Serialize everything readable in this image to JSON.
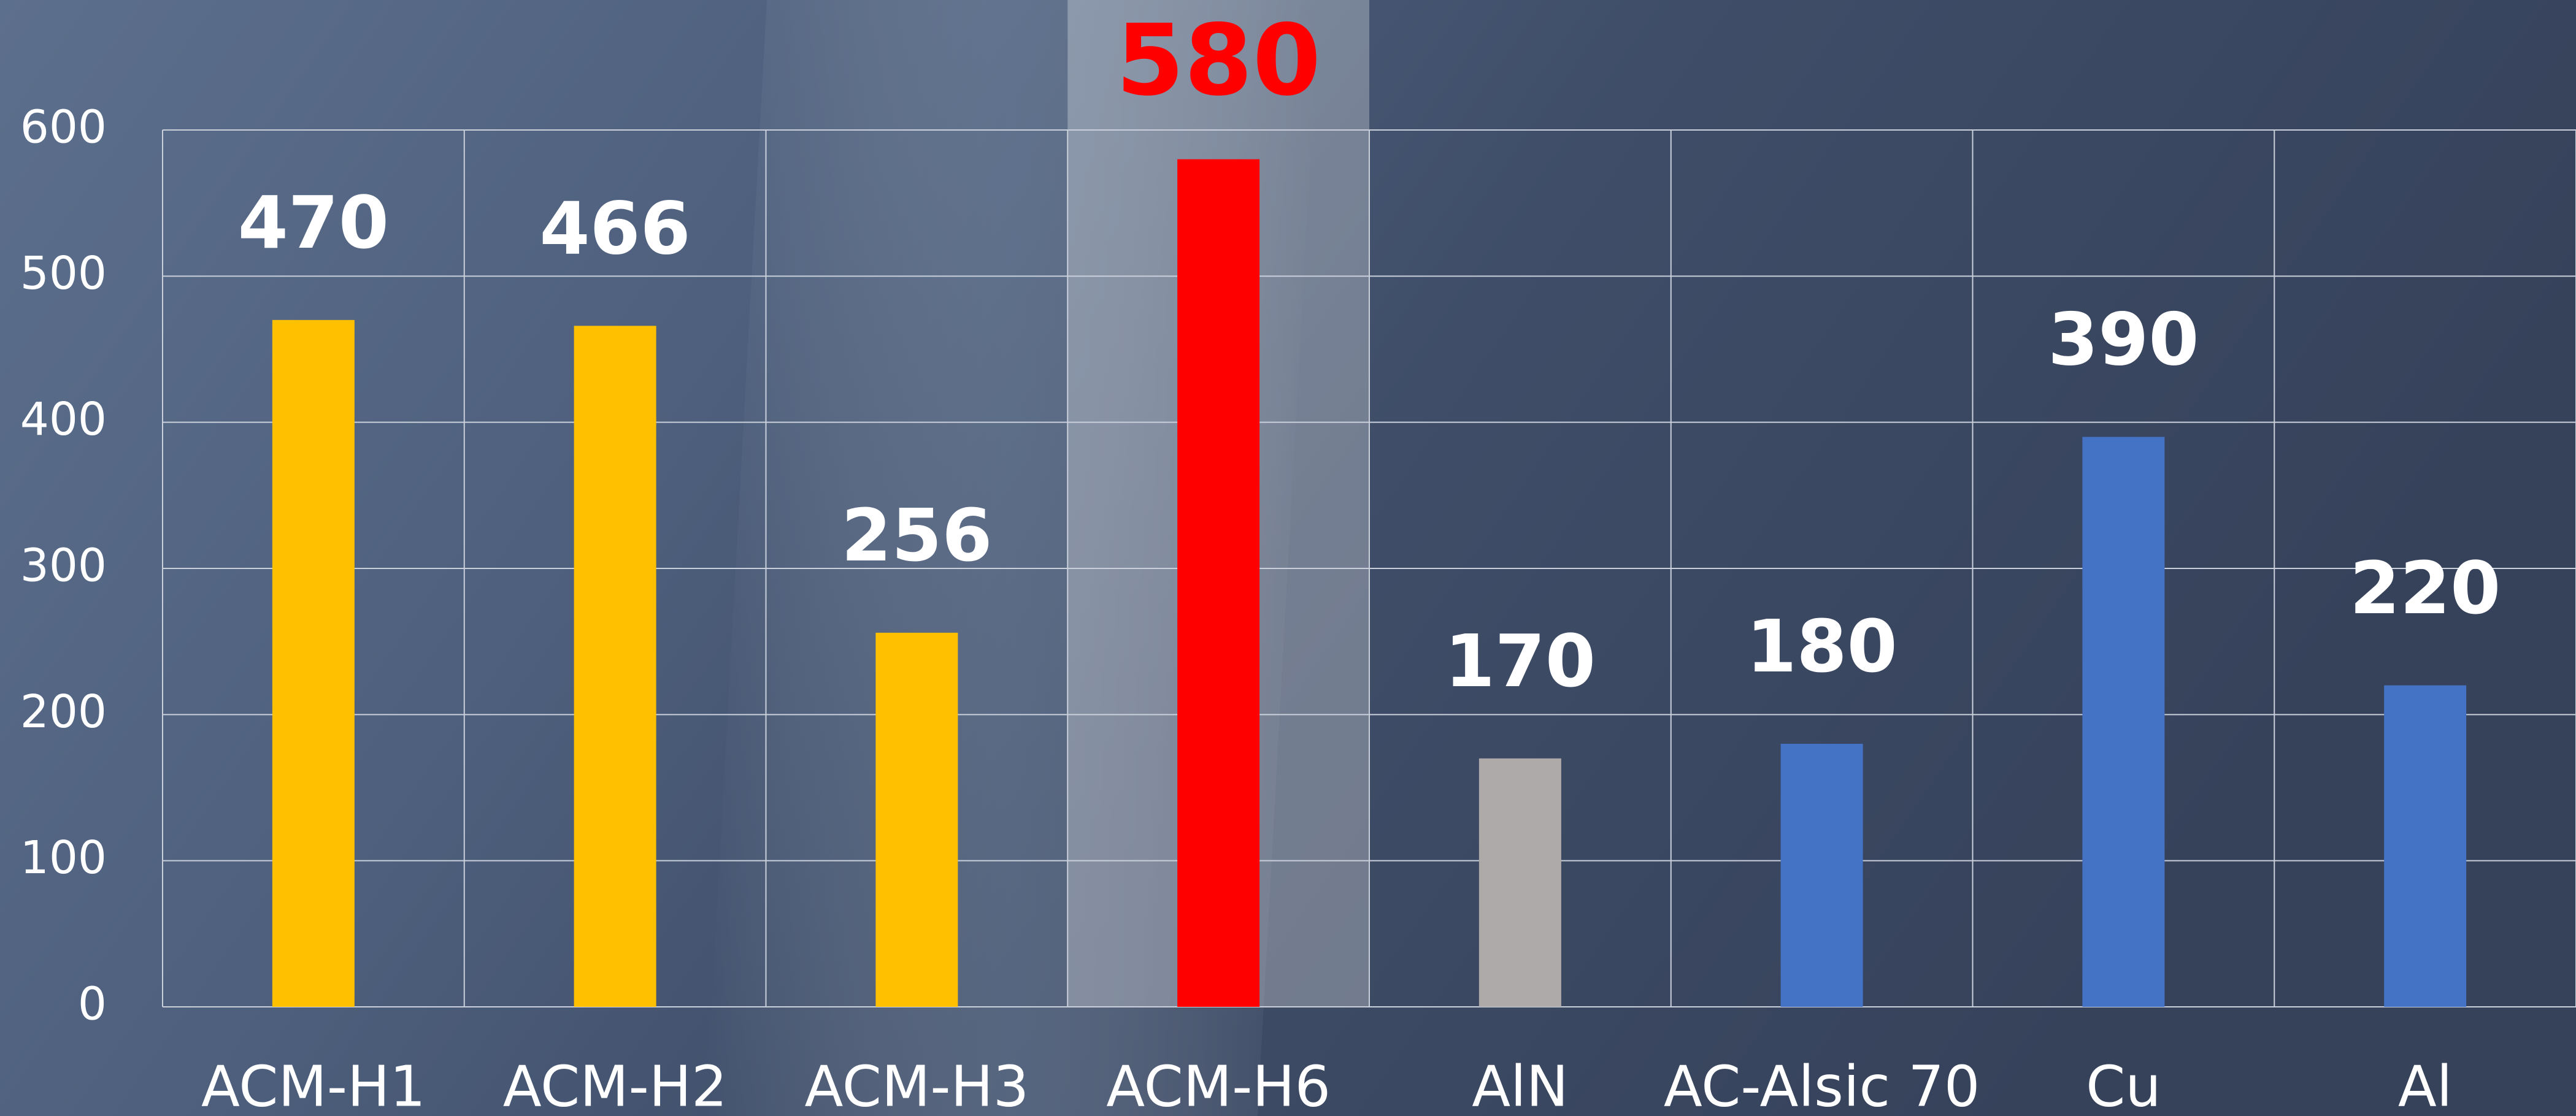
{
  "chart_data": {
    "type": "bar",
    "categories": [
      "ACM-H1",
      "ACM-H2",
      "ACM-H3",
      "ACM-H6",
      "AlN",
      "AC-Alsic 70",
      "Cu",
      "Al"
    ],
    "values": [
      470,
      466,
      256,
      580,
      170,
      180,
      390,
      220
    ],
    "colors": [
      "#ffc000",
      "#ffc000",
      "#ffc000",
      "#ff0000",
      "#aeaaaa",
      "#4472c4",
      "#4472c4",
      "#4472c4"
    ],
    "highlight_category": "ACM-H6",
    "ylim": [
      0,
      600
    ],
    "yticks": [
      0,
      100,
      200,
      300,
      400,
      500,
      600
    ],
    "grid": true
  }
}
